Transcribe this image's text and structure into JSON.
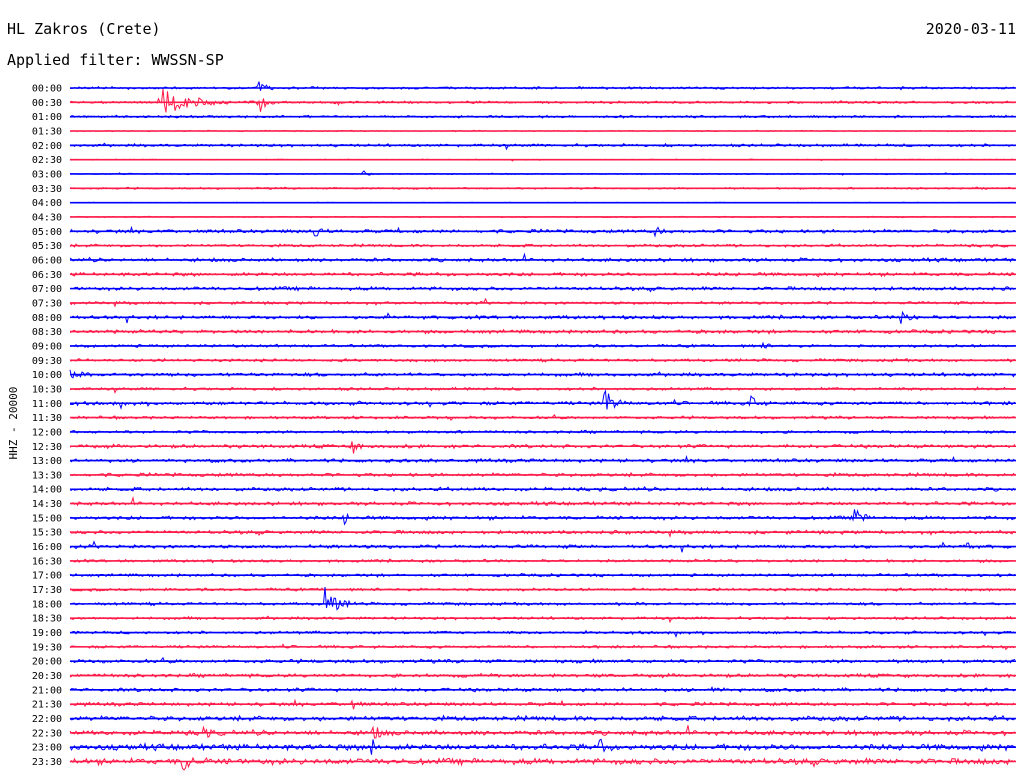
{
  "header": {
    "station": "HL Zakros (Crete)",
    "date": "2020-03-11",
    "filter_label": "Applied filter: WWSSN-SP",
    "channel_label": "HHZ - 20000"
  },
  "chart_data": {
    "type": "line",
    "title": "",
    "xlabel": "",
    "ylabel": "HHZ - 20000",
    "trace_colors": [
      "#0000ff",
      "#ff1a4a"
    ],
    "time_labels": [
      "00:00",
      "00:30",
      "01:00",
      "01:30",
      "02:00",
      "02:30",
      "03:00",
      "03:30",
      "04:00",
      "04:30",
      "05:00",
      "05:30",
      "06:00",
      "06:30",
      "07:00",
      "07:30",
      "08:00",
      "08:30",
      "09:00",
      "09:30",
      "10:00",
      "10:30",
      "11:00",
      "11:30",
      "12:00",
      "12:30",
      "13:00",
      "13:30",
      "14:00",
      "14:30",
      "15:00",
      "15:30",
      "16:00",
      "16:30",
      "17:00",
      "17:30",
      "18:00",
      "18:30",
      "19:00",
      "19:30",
      "20:00",
      "20:30",
      "21:00",
      "21:30",
      "22:00",
      "22:30",
      "23:00",
      "23:30"
    ],
    "noise": [
      1,
      1,
      1,
      0.5,
      1.2,
      0.4,
      0.5,
      0.8,
      0.3,
      0.5,
      1.5,
      1.2,
      1.5,
      1.5,
      1.5,
      1.2,
      1.5,
      1.5,
      1.2,
      1.2,
      1.5,
      1.2,
      1.5,
      1.2,
      1.2,
      1.5,
      1.5,
      1.5,
      1.5,
      1.5,
      1.5,
      1.5,
      1.5,
      1.2,
      1.2,
      1.2,
      1.2,
      1.2,
      1.2,
      1.2,
      1.5,
      1.5,
      1.5,
      1.5,
      2,
      2,
      2.5,
      2.5
    ],
    "events": [
      {
        "row": 1,
        "t": 0.095,
        "amp": 14,
        "dur": 0.1
      },
      {
        "row": 1,
        "t": 0.2,
        "amp": 12,
        "dur": 0.02
      },
      {
        "row": 0,
        "t": 0.2,
        "amp": 10,
        "dur": 0.02
      },
      {
        "row": 6,
        "t": 0.31,
        "amp": 3,
        "dur": 0.02
      },
      {
        "row": 10,
        "t": 0.26,
        "amp": 6,
        "dur": 0.015
      },
      {
        "row": 10,
        "t": 0.62,
        "amp": 5,
        "dur": 0.015
      },
      {
        "row": 16,
        "t": 0.88,
        "amp": 6,
        "dur": 0.03
      },
      {
        "row": 18,
        "t": 0.73,
        "amp": 4,
        "dur": 0.02
      },
      {
        "row": 20,
        "t": 0.0,
        "amp": 4,
        "dur": 0.03
      },
      {
        "row": 22,
        "t": 0.565,
        "amp": 15,
        "dur": 0.03
      },
      {
        "row": 22,
        "t": 0.72,
        "amp": 8,
        "dur": 0.02
      },
      {
        "row": 25,
        "t": 0.3,
        "amp": 6,
        "dur": 0.02
      },
      {
        "row": 30,
        "t": 0.83,
        "amp": 15,
        "dur": 0.02
      },
      {
        "row": 30,
        "t": 0.29,
        "amp": 5,
        "dur": 0.02
      },
      {
        "row": 32,
        "t": 0.95,
        "amp": 6,
        "dur": 0.01
      },
      {
        "row": 36,
        "t": 0.27,
        "amp": 17,
        "dur": 0.04
      },
      {
        "row": 42,
        "t": 0.68,
        "amp": 3,
        "dur": 0.02
      },
      {
        "row": 43,
        "t": 0.3,
        "amp": 4,
        "dur": 0.02
      },
      {
        "row": 45,
        "t": 0.14,
        "amp": 5,
        "dur": 0.03
      },
      {
        "row": 45,
        "t": 0.32,
        "amp": 6,
        "dur": 0.03
      },
      {
        "row": 46,
        "t": 0.32,
        "amp": 8,
        "dur": 0.015
      },
      {
        "row": 46,
        "t": 0.56,
        "amp": 8,
        "dur": 0.015
      },
      {
        "row": 47,
        "t": 0.12,
        "amp": 8,
        "dur": 0.03
      }
    ]
  }
}
